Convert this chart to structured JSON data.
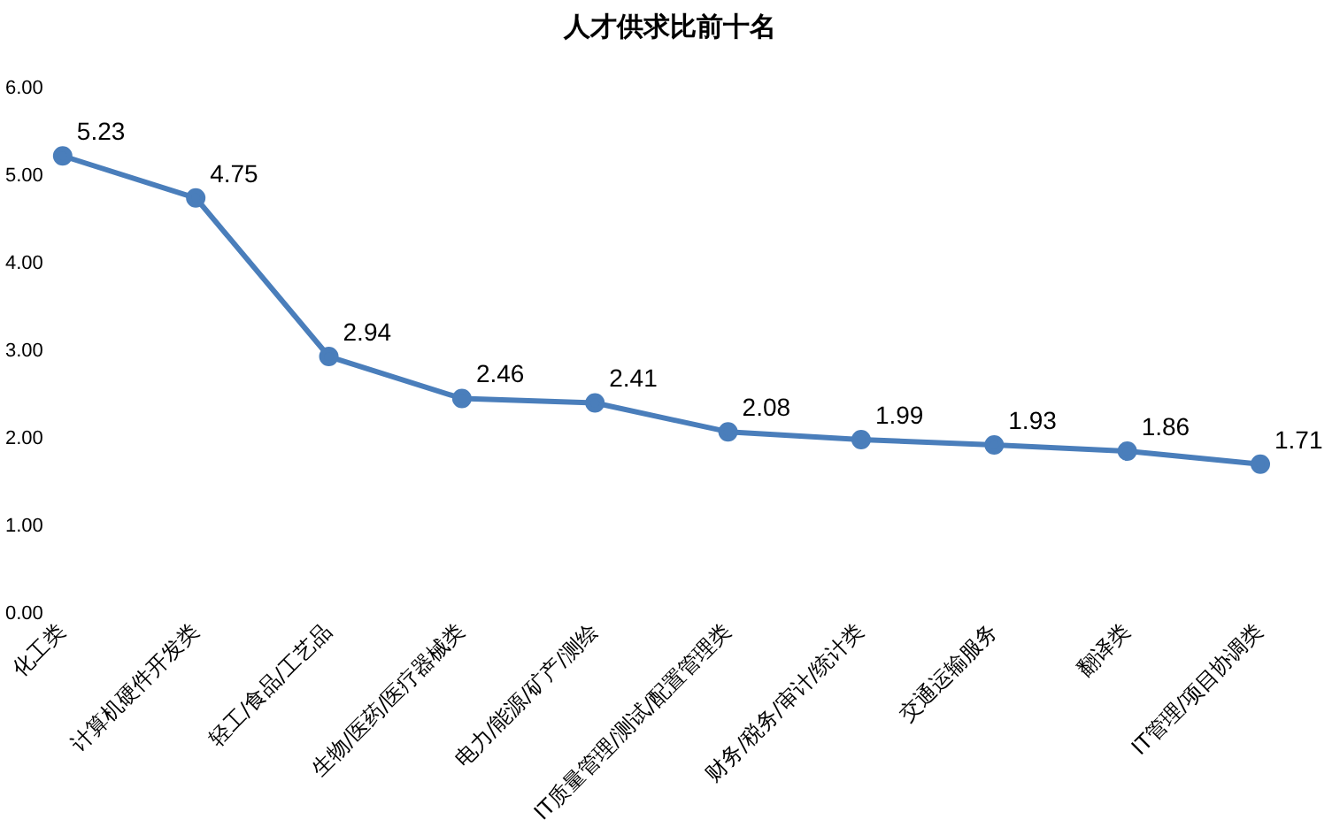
{
  "chart_data": {
    "type": "line",
    "title": "人才供求比前十名",
    "categories": [
      "化工类",
      "计算机硬件开发类",
      "轻工/食品/工艺品",
      "生物/医药/医疗器械类",
      "电力/能源/矿产/测绘",
      "IT质量管理/测试/配置管理类",
      "财务/税务/审计/统计类",
      "交通运输服务",
      "翻译类",
      "IT管理/项目协调类"
    ],
    "values": [
      5.23,
      4.75,
      2.94,
      2.46,
      2.41,
      2.08,
      1.99,
      1.93,
      1.86,
      1.71
    ],
    "color": "#4a7ebb",
    "ylim": [
      0,
      6
    ],
    "yticks": [
      {
        "value": 0,
        "label": "0.00"
      },
      {
        "value": 1,
        "label": "1.00"
      },
      {
        "value": 2,
        "label": "2.00"
      },
      {
        "value": 3,
        "label": "3.00"
      },
      {
        "value": 4,
        "label": "4.00"
      },
      {
        "value": 5,
        "label": "5.00"
      },
      {
        "value": 6,
        "label": "6.00"
      }
    ],
    "grid": false,
    "marker": "circle",
    "data_labels": true
  }
}
